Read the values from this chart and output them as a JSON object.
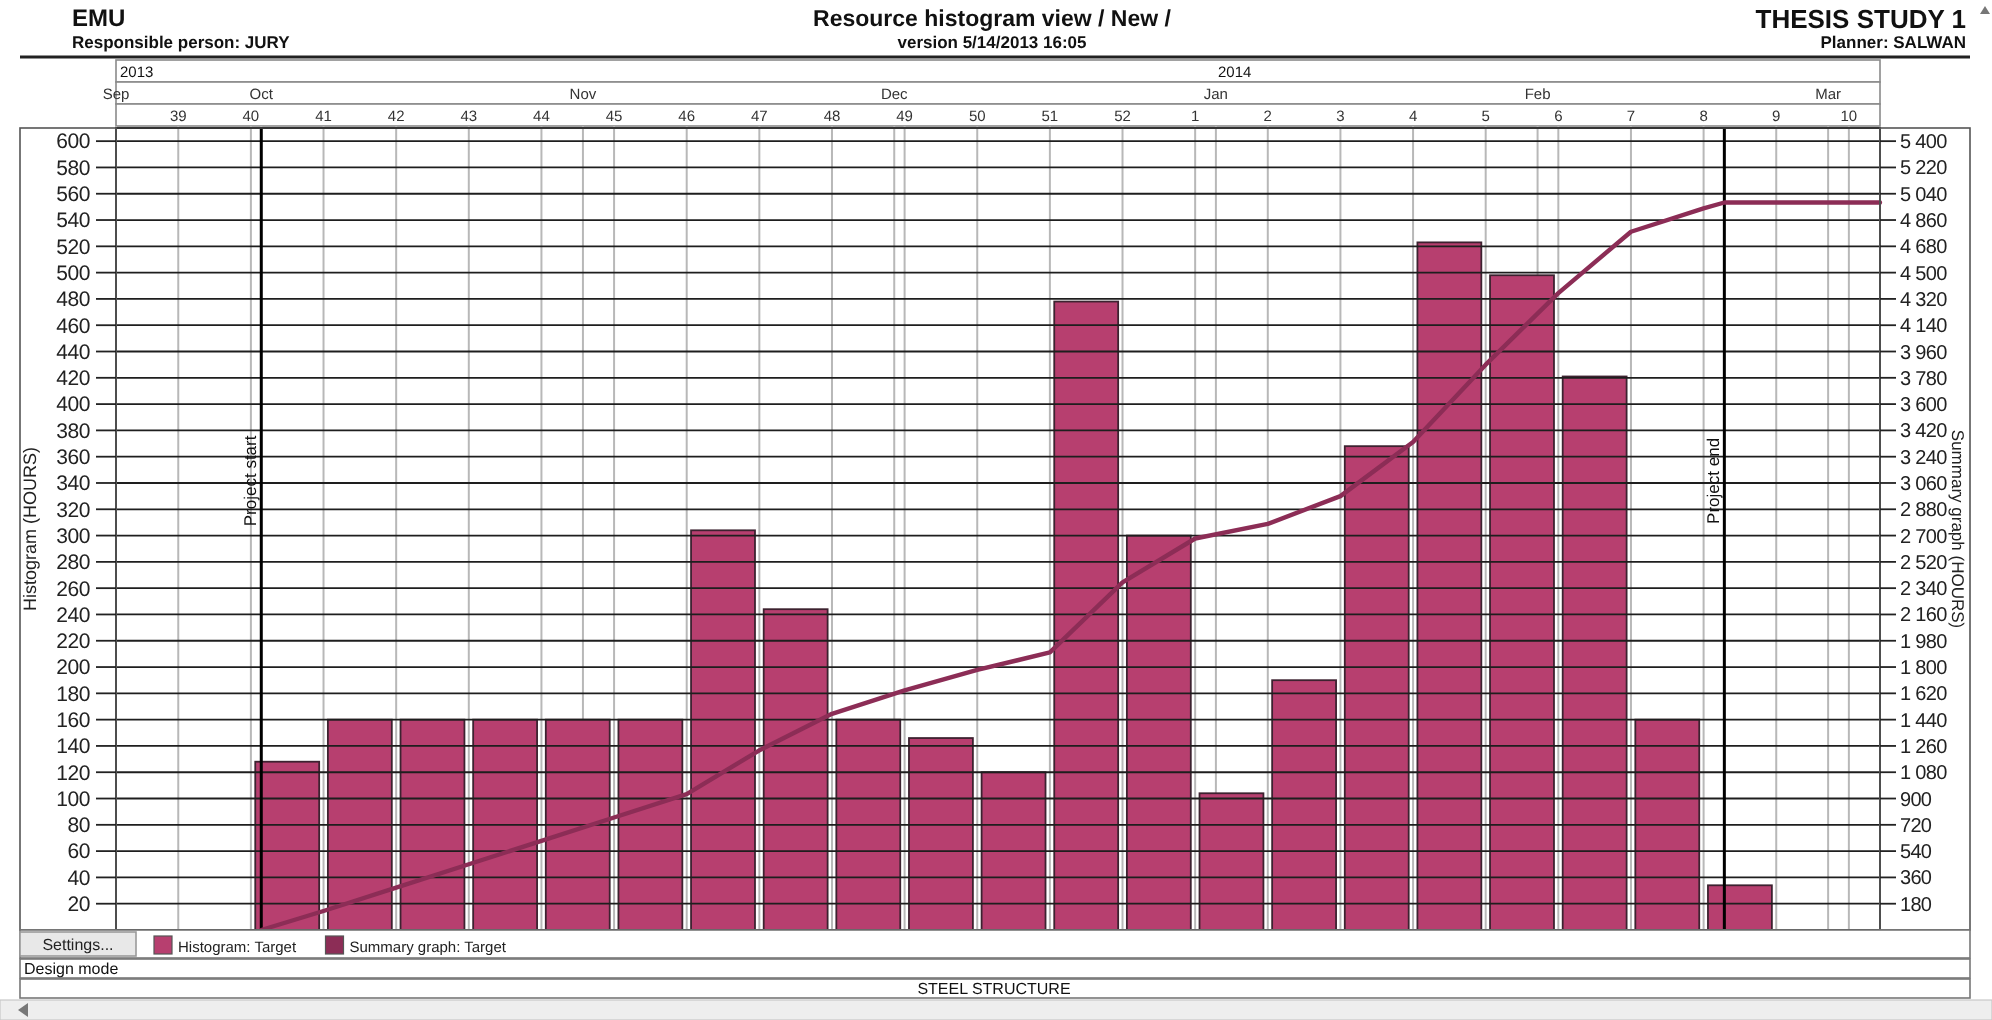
{
  "chart_data": {
    "type": "bar",
    "title": "Resource histogram view / New /",
    "subtitle": "version 5/14/2013 16:05",
    "ylabel": "Histogram (HOURS)",
    "y2label": "Summary graph (HOURS)",
    "annotations": [
      "EMU",
      "Responsible person: JURY",
      "THESIS STUDY 1",
      "Planner: SALWAN",
      "Settings...",
      "Design mode",
      "STEEL STRUCTURE",
      "2013",
      "2014"
    ],
    "xlim": [
      "2013-09-17",
      "2014-03-06"
    ],
    "xticks": [
      {
        "value": "2013-09-23",
        "label": "39"
      },
      {
        "value": "2013-09-30",
        "label": "40"
      },
      {
        "value": "2013-10-07",
        "label": "41"
      },
      {
        "value": "2013-10-14",
        "label": "42"
      },
      {
        "value": "2013-10-21",
        "label": "43"
      },
      {
        "value": "2013-10-28",
        "label": "44"
      },
      {
        "value": "2013-11-04",
        "label": "45"
      },
      {
        "value": "2013-11-11",
        "label": "46"
      },
      {
        "value": "2013-11-18",
        "label": "47"
      },
      {
        "value": "2013-11-25",
        "label": "48"
      },
      {
        "value": "2013-12-02",
        "label": "49"
      },
      {
        "value": "2013-12-09",
        "label": "50"
      },
      {
        "value": "2013-12-16",
        "label": "51"
      },
      {
        "value": "2013-12-23",
        "label": "52"
      },
      {
        "value": "2013-12-30",
        "label": "1"
      },
      {
        "value": "2014-01-06",
        "label": "2"
      },
      {
        "value": "2014-01-13",
        "label": "3"
      },
      {
        "value": "2014-01-20",
        "label": "4"
      },
      {
        "value": "2014-01-27",
        "label": "5"
      },
      {
        "value": "2014-02-03",
        "label": "6"
      },
      {
        "value": "2014-02-10",
        "label": "7"
      },
      {
        "value": "2014-02-17",
        "label": "8"
      },
      {
        "value": "2014-02-24",
        "label": "9"
      },
      {
        "value": "2014-03-03",
        "label": "10"
      }
    ],
    "x2lim": [
      "2013-09-17",
      "2014-03-06"
    ],
    "x2ticks": [
      {
        "value": "2013-09-17",
        "label": "Sep"
      },
      {
        "value": "2013-10-01",
        "label": "Oct"
      },
      {
        "value": "2013-11-01",
        "label": "Nov"
      },
      {
        "value": "2013-12-01",
        "label": "Dec"
      },
      {
        "value": "2014-01-01",
        "label": "Jan"
      },
      {
        "value": "2014-02-01",
        "label": "Feb"
      },
      {
        "value": "2014-03-01",
        "label": "Mar"
      }
    ],
    "ylim": [
      0,
      610
    ],
    "yticks": [
      20,
      40,
      60,
      80,
      100,
      120,
      140,
      160,
      180,
      200,
      220,
      240,
      260,
      280,
      300,
      320,
      340,
      360,
      380,
      400,
      420,
      440,
      460,
      480,
      500,
      520,
      540,
      560,
      580,
      600
    ],
    "y2lim": [
      0,
      5490
    ],
    "y2ticks": [
      180,
      360,
      540,
      720,
      900,
      {
        "value": 1080,
        "label": "1 080"
      },
      {
        "value": 1260,
        "label": "1 260"
      },
      {
        "value": 1440,
        "label": "1 440"
      },
      {
        "value": 1620,
        "label": "1 620"
      },
      {
        "value": 1800,
        "label": "1 800"
      },
      {
        "value": 1980,
        "label": "1 980"
      },
      {
        "value": 2160,
        "label": "2 160"
      },
      {
        "value": 2340,
        "label": "2 340"
      },
      {
        "value": 2520,
        "label": "2 520"
      },
      {
        "value": 2700,
        "label": "2 700"
      },
      {
        "value": 2880,
        "label": "2 880"
      },
      {
        "value": 3060,
        "label": "3 060"
      },
      {
        "value": 3240,
        "label": "3 240"
      },
      {
        "value": 3420,
        "label": "3 420"
      },
      {
        "value": 3600,
        "label": "3 600"
      },
      {
        "value": 3780,
        "label": "3 780"
      },
      {
        "value": 3960,
        "label": "3 960"
      },
      {
        "value": 4140,
        "label": "4 140"
      },
      {
        "value": 4320,
        "label": "4 320"
      },
      {
        "value": 4500,
        "label": "4 500"
      },
      {
        "value": 4680,
        "label": "4 680"
      },
      {
        "value": 4860,
        "label": "4 860"
      },
      {
        "value": 5040,
        "label": "5 040"
      },
      {
        "value": 5220,
        "label": "5 220"
      },
      {
        "value": 5400,
        "label": "5 400"
      }
    ],
    "series": [
      {
        "name": "Histogram: Target",
        "color": "#b73f6f",
        "x": [
          "2013-10-03T12:00",
          "2013-10-10T12:00",
          "2013-10-17T12:00",
          "2013-10-24T12:00",
          "2013-10-31T12:00",
          "2013-11-07T12:00",
          "2013-11-14T12:00",
          "2013-11-21T12:00",
          "2013-11-28T12:00",
          "2013-12-05T12:00",
          "2013-12-12T12:00",
          "2013-12-19T12:00",
          "2013-12-26T12:00",
          "2014-01-02T12:00",
          "2014-01-09T12:00",
          "2014-01-16T12:00",
          "2014-01-23T12:00",
          "2014-01-30T12:00",
          "2014-02-06T12:00",
          "2014-02-13T12:00",
          "2014-02-20T12:00"
        ],
        "values": [
          128,
          160,
          160,
          160,
          160,
          160,
          304,
          244,
          160,
          146,
          120,
          478,
          300,
          104,
          190,
          368,
          523,
          498,
          421,
          160,
          34
        ]
      },
      {
        "name": "Summary graph: Target",
        "type": "line",
        "axis": "y2",
        "color": "#8c2d56",
        "x": [
          "2013-10-01",
          "2013-10-07",
          "2013-10-14",
          "2013-10-21",
          "2013-10-28",
          "2013-11-04",
          "2013-11-11",
          "2013-11-18",
          "2013-11-25",
          "2013-12-02",
          "2013-12-09",
          "2013-12-16",
          "2013-12-23",
          "2013-12-30",
          "2014-01-06",
          "2014-01-13",
          "2014-01-20",
          "2014-01-27",
          "2014-02-03",
          "2014-02-10",
          "2014-02-17",
          "2014-02-19",
          "2014-03-06"
        ],
        "values": [
          0,
          130,
          290,
          450,
          610,
          770,
          930,
          1230,
          1480,
          1640,
          1780,
          1900,
          2380,
          2680,
          2780,
          2970,
          3340,
          3870,
          4360,
          4780,
          4940,
          4980,
          4980
        ]
      }
    ],
    "ref_lines": [
      {
        "axis": "x",
        "value": "2013-10-01",
        "label": "Project start",
        "color": "#000000"
      },
      {
        "axis": "x",
        "value": "2014-02-19",
        "label": "Project end",
        "color": "#000000"
      }
    ],
    "grid": true,
    "legend": "bottom"
  }
}
